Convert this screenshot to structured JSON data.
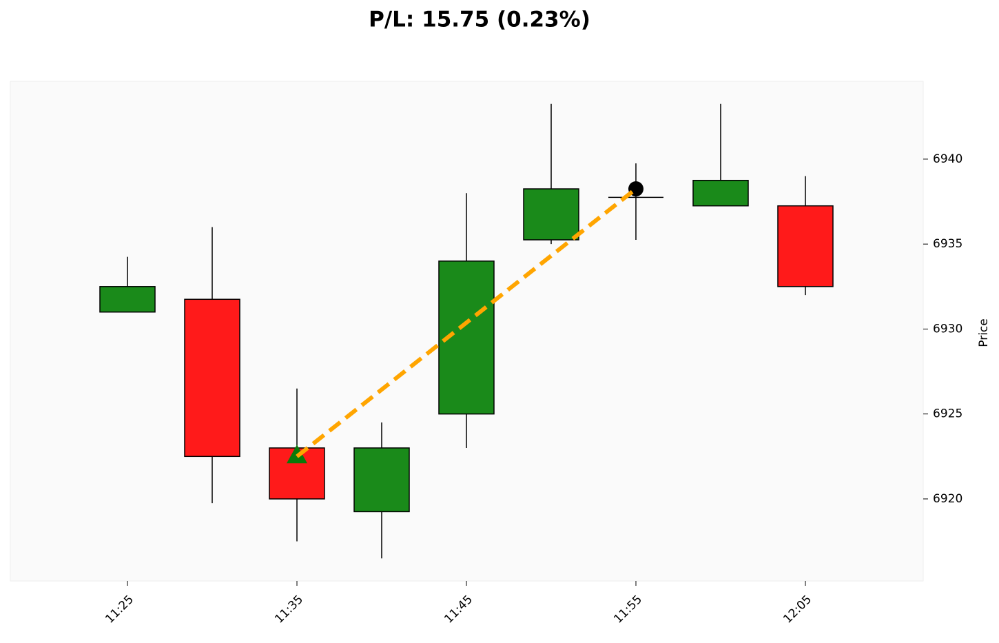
{
  "chart_data": {
    "type": "candlestick",
    "title": "P/L: 15.75 (0.23%)",
    "y_label": "Price",
    "categories": [
      "11:25",
      null,
      "11:35",
      null,
      "11:45",
      null,
      "11:55",
      null,
      "12:05"
    ],
    "open": [
      6931.0,
      6931.75,
      6923.0,
      6919.25,
      6925.0,
      6935.25,
      6937.75,
      6937.25,
      6937.25
    ],
    "high": [
      6934.25,
      6936.0,
      6926.5,
      6924.5,
      6938.0,
      6943.25,
      6939.75,
      6943.25,
      6939.0
    ],
    "low": [
      6931.0,
      6919.75,
      6917.5,
      6916.5,
      6923.0,
      6935.0,
      6935.25,
      6937.25,
      6932.0
    ],
    "close": [
      6932.5,
      6922.5,
      6920.0,
      6923.0,
      6934.0,
      6938.25,
      6937.75,
      6938.75,
      6932.5
    ],
    "up_color": "#1a8a1a",
    "down_color": "#ff1a1a",
    "doji_color": "#000000",
    "trade": {
      "entry_x": "11:35",
      "entry_price": 6922.5,
      "exit_x": "11:55",
      "exit_price": 6938.25,
      "entry_color": "#0a7a0a",
      "exit_color": "#000000",
      "line_color": "#ffa500"
    },
    "ylim": [
      6915.17,
      6944.58
    ],
    "yticks": [
      6920,
      6925,
      6930,
      6935,
      6940
    ]
  }
}
